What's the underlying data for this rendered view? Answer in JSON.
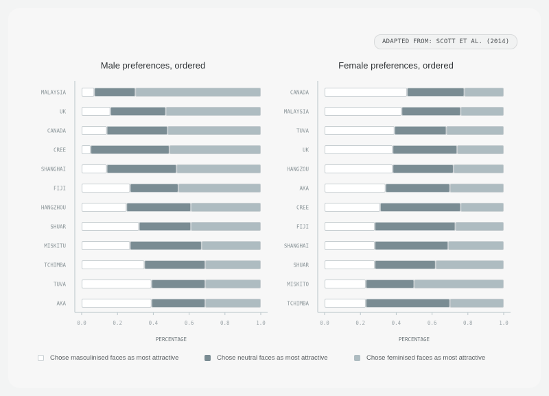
{
  "source_label": "ADAPTED FROM: SCOTT ET AL. (2014)",
  "colors": {
    "masculinised": "#ffffff",
    "neutral": "#7a8c93",
    "feminised": "#aebcc1",
    "bar_outline": "#c7ced1",
    "axis": "#b9c6ca",
    "tick_text": "#9aa3a7",
    "country_text": "#8a9498"
  },
  "legend": [
    {
      "key": "masculinised",
      "label": "Chose masculinised faces as most attractive"
    },
    {
      "key": "neutral",
      "label": "Chose neutral faces as most attractive"
    },
    {
      "key": "feminised",
      "label": "Chose feminised faces as most attractive"
    }
  ],
  "chart_data": [
    {
      "type": "bar",
      "stacked": true,
      "orientation": "horizontal",
      "title": "Male preferences, ordered",
      "xlabel": "PERCENTAGE",
      "xlim": [
        0,
        1
      ],
      "xticks": [
        "0.0",
        "0.2",
        "0.4",
        "0.6",
        "0.8",
        "1.0"
      ],
      "categories": [
        "MALAYSIA",
        "UK",
        "CANADA",
        "CREE",
        "SHANGHAI",
        "FIJI",
        "HANGZHOU",
        "SHUAR",
        "MISKITU",
        "TCHIMBA",
        "TUVA",
        "AKA"
      ],
      "series": [
        {
          "key": "masculinised",
          "name": "Chose masculinised faces as most attractive",
          "values": [
            0.07,
            0.16,
            0.14,
            0.05,
            0.14,
            0.27,
            0.25,
            0.32,
            0.27,
            0.35,
            0.39,
            0.39
          ]
        },
        {
          "key": "neutral",
          "name": "Chose neutral faces as most attractive",
          "values": [
            0.23,
            0.31,
            0.34,
            0.44,
            0.39,
            0.27,
            0.36,
            0.29,
            0.4,
            0.34,
            0.3,
            0.3
          ]
        },
        {
          "key": "feminised",
          "name": "Chose feminised faces as most attractive",
          "values": [
            0.7,
            0.53,
            0.52,
            0.51,
            0.47,
            0.46,
            0.39,
            0.39,
            0.33,
            0.31,
            0.31,
            0.31
          ]
        }
      ]
    },
    {
      "type": "bar",
      "stacked": true,
      "orientation": "horizontal",
      "title": "Female preferences, ordered",
      "xlabel": "PERCENTAGE",
      "xlim": [
        0,
        1
      ],
      "xticks": [
        "0.0",
        "0.2",
        "0.4",
        "0.6",
        "0.8",
        "1.0"
      ],
      "categories": [
        "CANADA",
        "MALAYSIA",
        "TUVA",
        "UK",
        "HANGZOU",
        "AKA",
        "CREE",
        "FIJI",
        "SHANGHAI",
        "SHUAR",
        "MISKITO",
        "TCHIMBA"
      ],
      "series": [
        {
          "key": "masculinised",
          "name": "Chose masculinised faces as most attractive",
          "values": [
            0.46,
            0.43,
            0.39,
            0.38,
            0.38,
            0.34,
            0.31,
            0.28,
            0.28,
            0.28,
            0.23,
            0.23
          ]
        },
        {
          "key": "neutral",
          "name": "Chose neutral faces as most attractive",
          "values": [
            0.32,
            0.33,
            0.29,
            0.36,
            0.34,
            0.36,
            0.45,
            0.45,
            0.41,
            0.34,
            0.27,
            0.47
          ]
        },
        {
          "key": "feminised",
          "name": "Chose feminised faces as most attractive",
          "values": [
            0.22,
            0.24,
            0.32,
            0.26,
            0.28,
            0.3,
            0.24,
            0.27,
            0.31,
            0.38,
            0.5,
            0.3
          ]
        }
      ]
    }
  ]
}
